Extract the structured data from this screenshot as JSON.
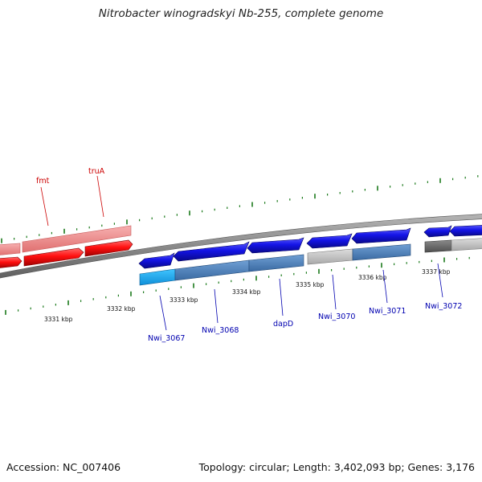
{
  "title": "Nitrobacter winogradskyi Nb-255, complete genome",
  "footer": {
    "accession": "Accession: NC_007406",
    "summary": "Topology: circular; Length: 3,402,093 bp; Genes: 3,176"
  },
  "colors": {
    "backbone": "#8c8c8c",
    "tick": "#1b7a1b",
    "forward_strand_genes": "#1414e6",
    "reverse_strand_genes": "#ff1010",
    "reverse_strand_band": "#f08c8c",
    "label_forward": "#0000b0",
    "label_reverse": "#cc0000",
    "cog_band_light_blue": "#1ea6f0",
    "cog_band_steel_blue": "#4a7fb8",
    "cog_band_grey": "#bdbdbd",
    "cog_band_dark_grey": "#707070"
  },
  "scale_labels": [
    "3331 kbp",
    "3332 kbp",
    "3333 kbp",
    "3334 kbp",
    "3335 kbp",
    "3336 kbp",
    "3337 kbp"
  ],
  "gene_labels": [
    {
      "text": "fmt",
      "strand": "reverse"
    },
    {
      "text": "truA",
      "strand": "reverse"
    },
    {
      "text": "Nwi_3067",
      "strand": "forward"
    },
    {
      "text": "Nwi_3068",
      "strand": "forward"
    },
    {
      "text": "dapD",
      "strand": "forward"
    },
    {
      "text": "Nwi_3070",
      "strand": "forward"
    },
    {
      "text": "Nwi_3071",
      "strand": "forward"
    },
    {
      "text": "Nwi_3072",
      "strand": "forward"
    }
  ]
}
